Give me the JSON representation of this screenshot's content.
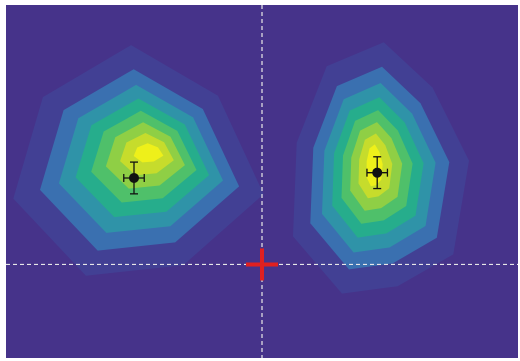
{
  "chart_data": {
    "type": "heatmap",
    "title": "",
    "xlabel": "",
    "ylabel": "",
    "colormap": [
      "#46338a",
      "#3f4b9c",
      "#3a70b0",
      "#2f93a8",
      "#26ad8c",
      "#4fc06a",
      "#8fcf45",
      "#c6dc2c",
      "#eef01a"
    ],
    "background_color": "#46338a",
    "series": [
      {
        "values": [
          {
            "x": 0.25,
            "y": 0.54,
            "peak": 1.0,
            "shape": "hexagonal-blob"
          },
          {
            "x": 0.725,
            "y": 0.52,
            "peak": 1.0,
            "shape": "vertical-lens"
          }
        ]
      }
    ],
    "centroids": [
      {
        "x": 0.25,
        "y": 0.51,
        "xerr": 0.02,
        "yerr": 0.045
      },
      {
        "x": 0.725,
        "y": 0.525,
        "xerr": 0.02,
        "yerr": 0.045
      }
    ],
    "reference_lines": {
      "vertical_x": 0.5,
      "horizontal_y": 0.265,
      "color": "#e8e8e8"
    },
    "origin_marker": {
      "x": 0.5,
      "y": 0.265,
      "color": "#e02020",
      "shape": "plus"
    }
  }
}
